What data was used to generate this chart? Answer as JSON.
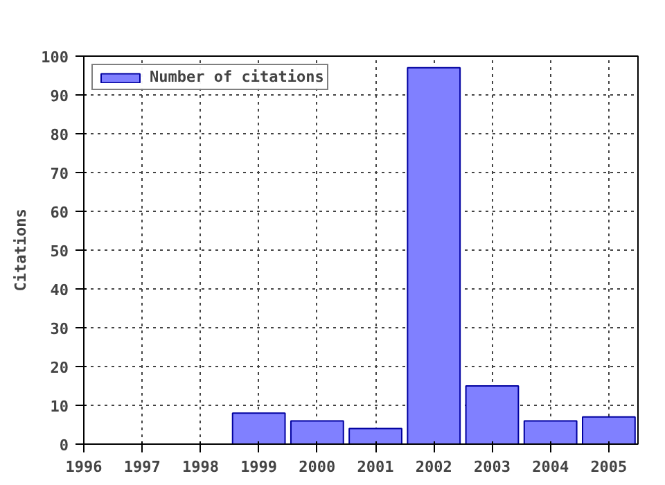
{
  "chart_data": {
    "type": "bar",
    "ylabel": "Citations",
    "x": [
      1999,
      2000,
      2001,
      2002,
      2003,
      2004,
      2005
    ],
    "series": [
      {
        "name": "Number of citations",
        "color": "#8080ff",
        "values": [
          8,
          6,
          4,
          97,
          15,
          6,
          7
        ]
      }
    ],
    "xlim": [
      1996,
      2005.5
    ],
    "xticks": [
      1996,
      1997,
      1998,
      1999,
      2000,
      2001,
      2002,
      2003,
      2004,
      2005
    ],
    "ylim": [
      0,
      100
    ],
    "yticks": [
      0,
      10,
      20,
      30,
      40,
      50,
      60,
      70,
      80,
      90,
      100
    ],
    "grid": true,
    "legend": "top left"
  }
}
